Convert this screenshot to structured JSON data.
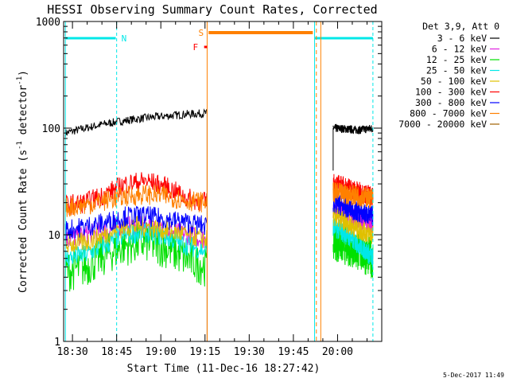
{
  "chart_data": {
    "type": "line",
    "title": "HESSI Observing Summary Count Rates, Corrected",
    "xlabel": "Start Time (11-Dec-16 18:27:42)",
    "ylabel_main": "Corrected Count Rate (s",
    "ylabel_sup1": "-1",
    "ylabel_mid": " detector",
    "ylabel_sup2": "-1",
    "ylabel_end": ")",
    "y_scale": "log",
    "ylim": [
      1,
      1000
    ],
    "xlim_minutes": [
      18.45,
      20.25
    ],
    "x_ticks": [
      {
        "label": "18:30",
        "value": 18.5
      },
      {
        "label": "18:45",
        "value": 18.75
      },
      {
        "label": "19:00",
        "value": 19.0
      },
      {
        "label": "19:15",
        "value": 19.25
      },
      {
        "label": "19:30",
        "value": 19.5
      },
      {
        "label": "19:45",
        "value": 19.75
      },
      {
        "label": "20:00",
        "value": 20.0
      }
    ],
    "y_ticks": [
      {
        "label": "1",
        "value": 1
      },
      {
        "label": "10",
        "value": 10
      },
      {
        "label": "100",
        "value": 100
      },
      {
        "label": "1000",
        "value": 1000
      }
    ],
    "legend_title": "Det 3,9, Att 0",
    "legend_position": "right",
    "series": [
      {
        "name": "3 - 6 keV",
        "color": "#000000",
        "pre": [
          90,
          100,
          110,
          118,
          125,
          130,
          135,
          138
        ],
        "post": [
          100,
          98,
          96,
          100
        ]
      },
      {
        "name": "6 - 12 keV",
        "color": "#e020e0",
        "pre": [
          9,
          10,
          11,
          12,
          12,
          11,
          10,
          9
        ],
        "post": [
          18,
          16,
          14,
          12
        ]
      },
      {
        "name": "12 - 25 keV",
        "color": "#00e000",
        "pre": [
          4.5,
          5,
          6.5,
          8,
          8.5,
          7.5,
          6,
          5
        ],
        "post": [
          9,
          8,
          7,
          6
        ]
      },
      {
        "name": "25 - 50 keV",
        "color": "#00e8e8",
        "pre": [
          6,
          6.5,
          8,
          10,
          10.5,
          9.5,
          8,
          7
        ],
        "post": [
          12,
          10,
          8,
          6
        ]
      },
      {
        "name": "50 - 100 keV",
        "color": "#e0c000",
        "pre": [
          8,
          8.5,
          10,
          12,
          12,
          11,
          10,
          9
        ],
        "post": [
          15,
          13,
          11,
          10
        ]
      },
      {
        "name": "100 - 300 keV",
        "color": "#ff0000",
        "pre": [
          19,
          20,
          24,
          30,
          32,
          28,
          22,
          20
        ],
        "post": [
          30,
          28,
          25,
          23
        ]
      },
      {
        "name": "300 - 800 keV",
        "color": "#0000ff",
        "pre": [
          11,
          12,
          13,
          15,
          15,
          14,
          13,
          12
        ],
        "post": [
          20,
          18,
          16,
          15
        ]
      },
      {
        "name": "800 - 7000 keV",
        "color": "#ff8000",
        "pre": [
          18,
          19,
          21,
          23,
          24,
          23,
          21,
          20
        ],
        "post": [
          25,
          24,
          23,
          22
        ]
      },
      {
        "name": "7000 - 20000 keV",
        "color": "#a06000",
        "pre": [],
        "post": []
      }
    ],
    "flags": [
      {
        "label": "N",
        "color": "#00e8e8"
      },
      {
        "label": "S",
        "color": "#ff8000"
      },
      {
        "label": "F",
        "color": "#ff0000"
      }
    ]
  },
  "timestamp": "5-Dec-2017 11:49"
}
